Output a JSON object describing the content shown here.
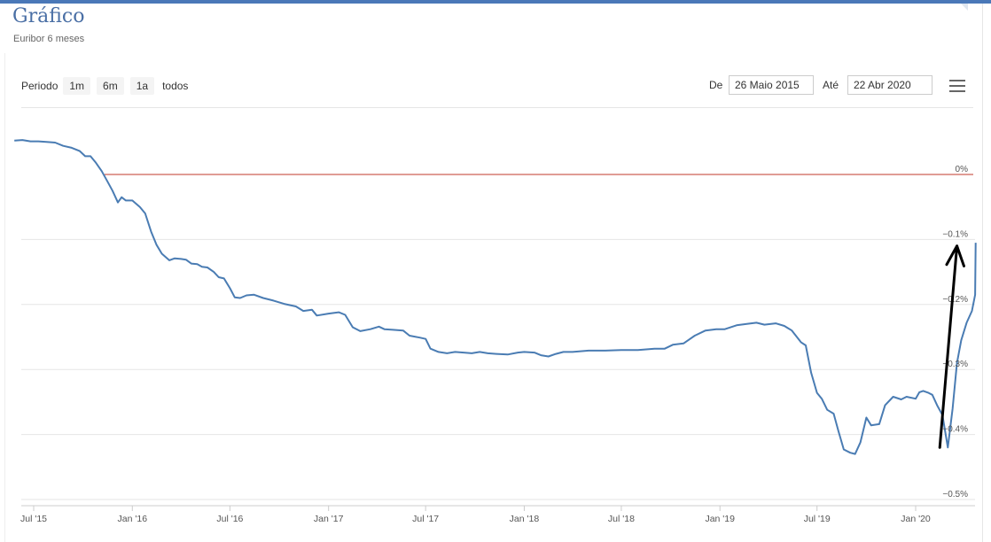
{
  "header": {
    "title": "Gráfico",
    "subtitle": "Euribor 6 meses"
  },
  "range_selector": {
    "label": "Periodo",
    "buttons": [
      "1m",
      "6m",
      "1a",
      "todos"
    ]
  },
  "date_range": {
    "from_label": "De",
    "from_value": "26 Maio 2015",
    "to_label": "Até",
    "to_value": "22 Abr 2020"
  },
  "colors": {
    "line": "#4a7cb3",
    "zero_line": "#c0392b",
    "annotation_arrow": "#000000",
    "accent": "#4a78b8"
  },
  "chart_data": {
    "type": "line",
    "title": "",
    "xlabel": "",
    "ylabel": "",
    "ylim": [
      -0.5,
      0.05
    ],
    "y_ticks": [
      {
        "value": 0,
        "label": "0%"
      },
      {
        "value": -0.1,
        "label": "−0.1%"
      },
      {
        "value": -0.2,
        "label": "−0.2%"
      },
      {
        "value": -0.3,
        "label": "−0.3%"
      },
      {
        "value": -0.4,
        "label": "−0.4%"
      },
      {
        "value": -0.5,
        "label": "−0.5%"
      }
    ],
    "x_range": [
      "2015-05-26",
      "2020-04-22"
    ],
    "x_ticks": [
      {
        "date": "2015-07-01",
        "label": "Jul '15"
      },
      {
        "date": "2016-01-01",
        "label": "Jan '16"
      },
      {
        "date": "2016-07-01",
        "label": "Jul '16"
      },
      {
        "date": "2017-01-01",
        "label": "Jan '17"
      },
      {
        "date": "2017-07-01",
        "label": "Jul '17"
      },
      {
        "date": "2018-01-01",
        "label": "Jan '18"
      },
      {
        "date": "2018-07-01",
        "label": "Jul '18"
      },
      {
        "date": "2019-01-01",
        "label": "Jan '19"
      },
      {
        "date": "2019-07-01",
        "label": "Jul '19"
      },
      {
        "date": "2020-01-01",
        "label": "Jan '20"
      }
    ],
    "reference_line": {
      "value": 0
    },
    "annotation": {
      "type": "arrow",
      "from": [
        "2020-02-15",
        -0.42
      ],
      "to": [
        "2020-03-18",
        -0.11
      ]
    },
    "series": [
      {
        "points": [
          [
            "2015-05-26",
            0.052
          ],
          [
            "2015-06-10",
            0.053
          ],
          [
            "2015-06-25",
            0.051
          ],
          [
            "2015-07-10",
            0.051
          ],
          [
            "2015-07-25",
            0.05
          ],
          [
            "2015-08-10",
            0.049
          ],
          [
            "2015-08-25",
            0.044
          ],
          [
            "2015-09-10",
            0.041
          ],
          [
            "2015-09-25",
            0.036
          ],
          [
            "2015-10-05",
            0.028
          ],
          [
            "2015-10-15",
            0.028
          ],
          [
            "2015-10-25",
            0.018
          ],
          [
            "2015-11-05",
            0.005
          ],
          [
            "2015-11-15",
            -0.01
          ],
          [
            "2015-11-25",
            -0.025
          ],
          [
            "2015-12-05",
            -0.043
          ],
          [
            "2015-12-12",
            -0.035
          ],
          [
            "2015-12-20",
            -0.04
          ],
          [
            "2016-01-01",
            -0.04
          ],
          [
            "2016-01-15",
            -0.05
          ],
          [
            "2016-01-25",
            -0.06
          ],
          [
            "2016-02-05",
            -0.088
          ],
          [
            "2016-02-15",
            -0.108
          ],
          [
            "2016-02-25",
            -0.122
          ],
          [
            "2016-03-10",
            -0.132
          ],
          [
            "2016-03-20",
            -0.129
          ],
          [
            "2016-04-01",
            -0.13
          ],
          [
            "2016-04-10",
            -0.131
          ],
          [
            "2016-04-20",
            -0.137
          ],
          [
            "2016-05-01",
            -0.138
          ],
          [
            "2016-05-10",
            -0.142
          ],
          [
            "2016-05-20",
            -0.143
          ],
          [
            "2016-06-01",
            -0.15
          ],
          [
            "2016-06-10",
            -0.158
          ],
          [
            "2016-06-20",
            -0.16
          ],
          [
            "2016-07-01",
            -0.175
          ],
          [
            "2016-07-10",
            -0.189
          ],
          [
            "2016-07-20",
            -0.19
          ],
          [
            "2016-08-01",
            -0.186
          ],
          [
            "2016-08-15",
            -0.185
          ],
          [
            "2016-09-01",
            -0.19
          ],
          [
            "2016-09-20",
            -0.194
          ],
          [
            "2016-10-10",
            -0.199
          ],
          [
            "2016-11-01",
            -0.203
          ],
          [
            "2016-11-15",
            -0.21
          ],
          [
            "2016-12-01",
            -0.208
          ],
          [
            "2016-12-10",
            -0.217
          ],
          [
            "2017-01-01",
            -0.214
          ],
          [
            "2017-01-20",
            -0.212
          ],
          [
            "2017-02-01",
            -0.216
          ],
          [
            "2017-02-15",
            -0.235
          ],
          [
            "2017-03-01",
            -0.241
          ],
          [
            "2017-03-20",
            -0.238
          ],
          [
            "2017-04-05",
            -0.234
          ],
          [
            "2017-04-15",
            -0.238
          ],
          [
            "2017-05-01",
            -0.239
          ],
          [
            "2017-05-20",
            -0.24
          ],
          [
            "2017-06-01",
            -0.248
          ],
          [
            "2017-06-20",
            -0.251
          ],
          [
            "2017-07-01",
            -0.253
          ],
          [
            "2017-07-10",
            -0.268
          ],
          [
            "2017-07-25",
            -0.273
          ],
          [
            "2017-08-10",
            -0.275
          ],
          [
            "2017-08-25",
            -0.273
          ],
          [
            "2017-09-10",
            -0.274
          ],
          [
            "2017-09-25",
            -0.275
          ],
          [
            "2017-10-10",
            -0.273
          ],
          [
            "2017-10-25",
            -0.275
          ],
          [
            "2017-11-10",
            -0.276
          ],
          [
            "2017-12-01",
            -0.277
          ],
          [
            "2017-12-20",
            -0.274
          ],
          [
            "2018-01-01",
            -0.273
          ],
          [
            "2018-01-20",
            -0.274
          ],
          [
            "2018-02-01",
            -0.278
          ],
          [
            "2018-02-15",
            -0.28
          ],
          [
            "2018-03-01",
            -0.276
          ],
          [
            "2018-03-15",
            -0.273
          ],
          [
            "2018-04-01",
            -0.273
          ],
          [
            "2018-05-01",
            -0.271
          ],
          [
            "2018-06-01",
            -0.271
          ],
          [
            "2018-07-01",
            -0.27
          ],
          [
            "2018-08-01",
            -0.27
          ],
          [
            "2018-09-01",
            -0.268
          ],
          [
            "2018-09-20",
            -0.268
          ],
          [
            "2018-10-05",
            -0.262
          ],
          [
            "2018-10-25",
            -0.26
          ],
          [
            "2018-11-15",
            -0.248
          ],
          [
            "2018-12-05",
            -0.24
          ],
          [
            "2018-12-25",
            -0.238
          ],
          [
            "2019-01-10",
            -0.238
          ],
          [
            "2019-02-01",
            -0.232
          ],
          [
            "2019-02-20",
            -0.23
          ],
          [
            "2019-03-10",
            -0.228
          ],
          [
            "2019-03-25",
            -0.231
          ],
          [
            "2019-04-15",
            -0.229
          ],
          [
            "2019-05-01",
            -0.233
          ],
          [
            "2019-05-15",
            -0.24
          ],
          [
            "2019-06-01",
            -0.258
          ],
          [
            "2019-06-10",
            -0.263
          ],
          [
            "2019-06-20",
            -0.305
          ],
          [
            "2019-07-01",
            -0.336
          ],
          [
            "2019-07-10",
            -0.345
          ],
          [
            "2019-07-20",
            -0.362
          ],
          [
            "2019-08-01",
            -0.368
          ],
          [
            "2019-08-10",
            -0.395
          ],
          [
            "2019-08-20",
            -0.423
          ],
          [
            "2019-09-01",
            -0.428
          ],
          [
            "2019-09-10",
            -0.43
          ],
          [
            "2019-09-20",
            -0.412
          ],
          [
            "2019-10-01",
            -0.374
          ],
          [
            "2019-10-10",
            -0.386
          ],
          [
            "2019-10-25",
            -0.384
          ],
          [
            "2019-11-05",
            -0.355
          ],
          [
            "2019-11-20",
            -0.342
          ],
          [
            "2019-12-05",
            -0.346
          ],
          [
            "2019-12-15",
            -0.342
          ],
          [
            "2020-01-01",
            -0.345
          ],
          [
            "2020-01-08",
            -0.335
          ],
          [
            "2020-01-15",
            -0.333
          ],
          [
            "2020-01-25",
            -0.336
          ],
          [
            "2020-02-01",
            -0.339
          ],
          [
            "2020-02-10",
            -0.355
          ],
          [
            "2020-02-20",
            -0.37
          ],
          [
            "2020-03-01",
            -0.42
          ],
          [
            "2020-03-10",
            -0.36
          ],
          [
            "2020-03-18",
            -0.29
          ],
          [
            "2020-03-26",
            -0.255
          ],
          [
            "2020-04-05",
            -0.228
          ],
          [
            "2020-04-15",
            -0.21
          ],
          [
            "2020-04-21",
            -0.185
          ],
          [
            "2020-04-22",
            -0.105
          ]
        ]
      }
    ]
  }
}
